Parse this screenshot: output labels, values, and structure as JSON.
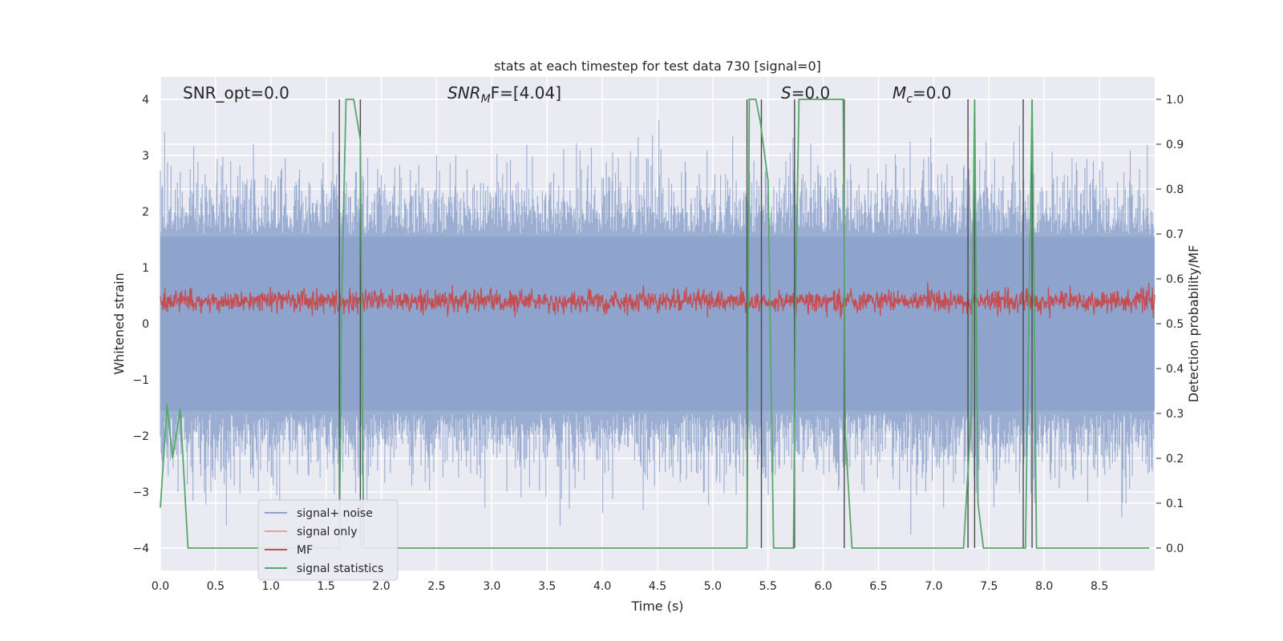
{
  "chart_data": {
    "type": "line",
    "title": "stats at each timestep for test data 730 [signal=0]",
    "xlabel": "Time (s)",
    "ylabel_left": "Whitened strain",
    "ylabel_right": "Detection probability/MF",
    "xlim": [
      0.0,
      9.0
    ],
    "ylim_left": [
      -4.4,
      4.4
    ],
    "ylim_right": [
      -0.05,
      1.05
    ],
    "x_ticks": [
      "0.0",
      "0.5",
      "1.0",
      "1.5",
      "2.0",
      "2.5",
      "3.0",
      "3.5",
      "4.0",
      "4.5",
      "5.0",
      "5.5",
      "6.0",
      "6.5",
      "7.0",
      "7.5",
      "8.0",
      "8.5"
    ],
    "y_ticks_left": [
      "−4",
      "−3",
      "−2",
      "−1",
      "0",
      "1",
      "2",
      "3",
      "4"
    ],
    "y_ticks_right": [
      "0.0",
      "0.1",
      "0.2",
      "0.3",
      "0.4",
      "0.5",
      "0.6",
      "0.7",
      "0.8",
      "0.9",
      "1.0"
    ],
    "annotations": {
      "snr_opt": "SNR_opt=0.0",
      "snr_mf_base": "SNR",
      "snr_mf_sub": "M",
      "snr_mf_rest": "F=[4.04]",
      "s_label_italic": "S",
      "s_label_rest": "=0.0",
      "mc_base": "M",
      "mc_sub": "c",
      "mc_rest": "=0.0"
    },
    "legend": {
      "placement": "lower-left",
      "entries": [
        {
          "label": "signal+ noise",
          "color": "#8da3cc"
        },
        {
          "label": "signal only",
          "color": "#e8a48a"
        },
        {
          "label": "MF",
          "color": "#c44e52"
        },
        {
          "label": "signal statistics",
          "color": "#55a868"
        }
      ]
    },
    "vertical_markers_x": [
      1.62,
      1.81,
      5.31,
      5.44,
      5.74,
      6.19,
      7.31,
      7.37,
      7.81,
      7.89
    ],
    "series": [
      {
        "name": "signal statistics",
        "axis": "right",
        "color": "#55a868",
        "x": [
          0.0,
          0.06,
          0.11,
          0.18,
          0.25,
          1.62,
          1.64,
          1.68,
          1.75,
          1.81,
          1.84,
          1.88,
          5.31,
          5.33,
          5.39,
          5.43,
          5.5,
          5.55,
          5.73,
          5.75,
          5.78,
          6.18,
          6.2,
          6.26,
          7.27,
          7.34,
          7.37,
          7.4,
          7.45,
          7.83,
          7.89,
          7.93,
          8.95
        ],
        "y": [
          0.09,
          0.32,
          0.2,
          0.31,
          0.0,
          0.0,
          0.55,
          1.0,
          1.0,
          0.91,
          0.0,
          0.0,
          0.0,
          1.0,
          1.0,
          0.95,
          0.82,
          0.0,
          0.0,
          0.55,
          1.0,
          1.0,
          0.25,
          0.0,
          0.0,
          0.3,
          1.0,
          0.1,
          0.0,
          0.0,
          1.0,
          0.0,
          0.0
        ]
      }
    ],
    "noise_series": {
      "name": "signal+ noise",
      "axis": "left",
      "color": "#8da3cc",
      "envelope_typical": 1.6,
      "peak_max": 3.97,
      "peak_min": -3.85
    },
    "mf_series": {
      "name": "MF",
      "axis": "right",
      "color": "#c44e52",
      "mean": 0.55,
      "range": [
        0.5,
        0.6
      ]
    }
  }
}
